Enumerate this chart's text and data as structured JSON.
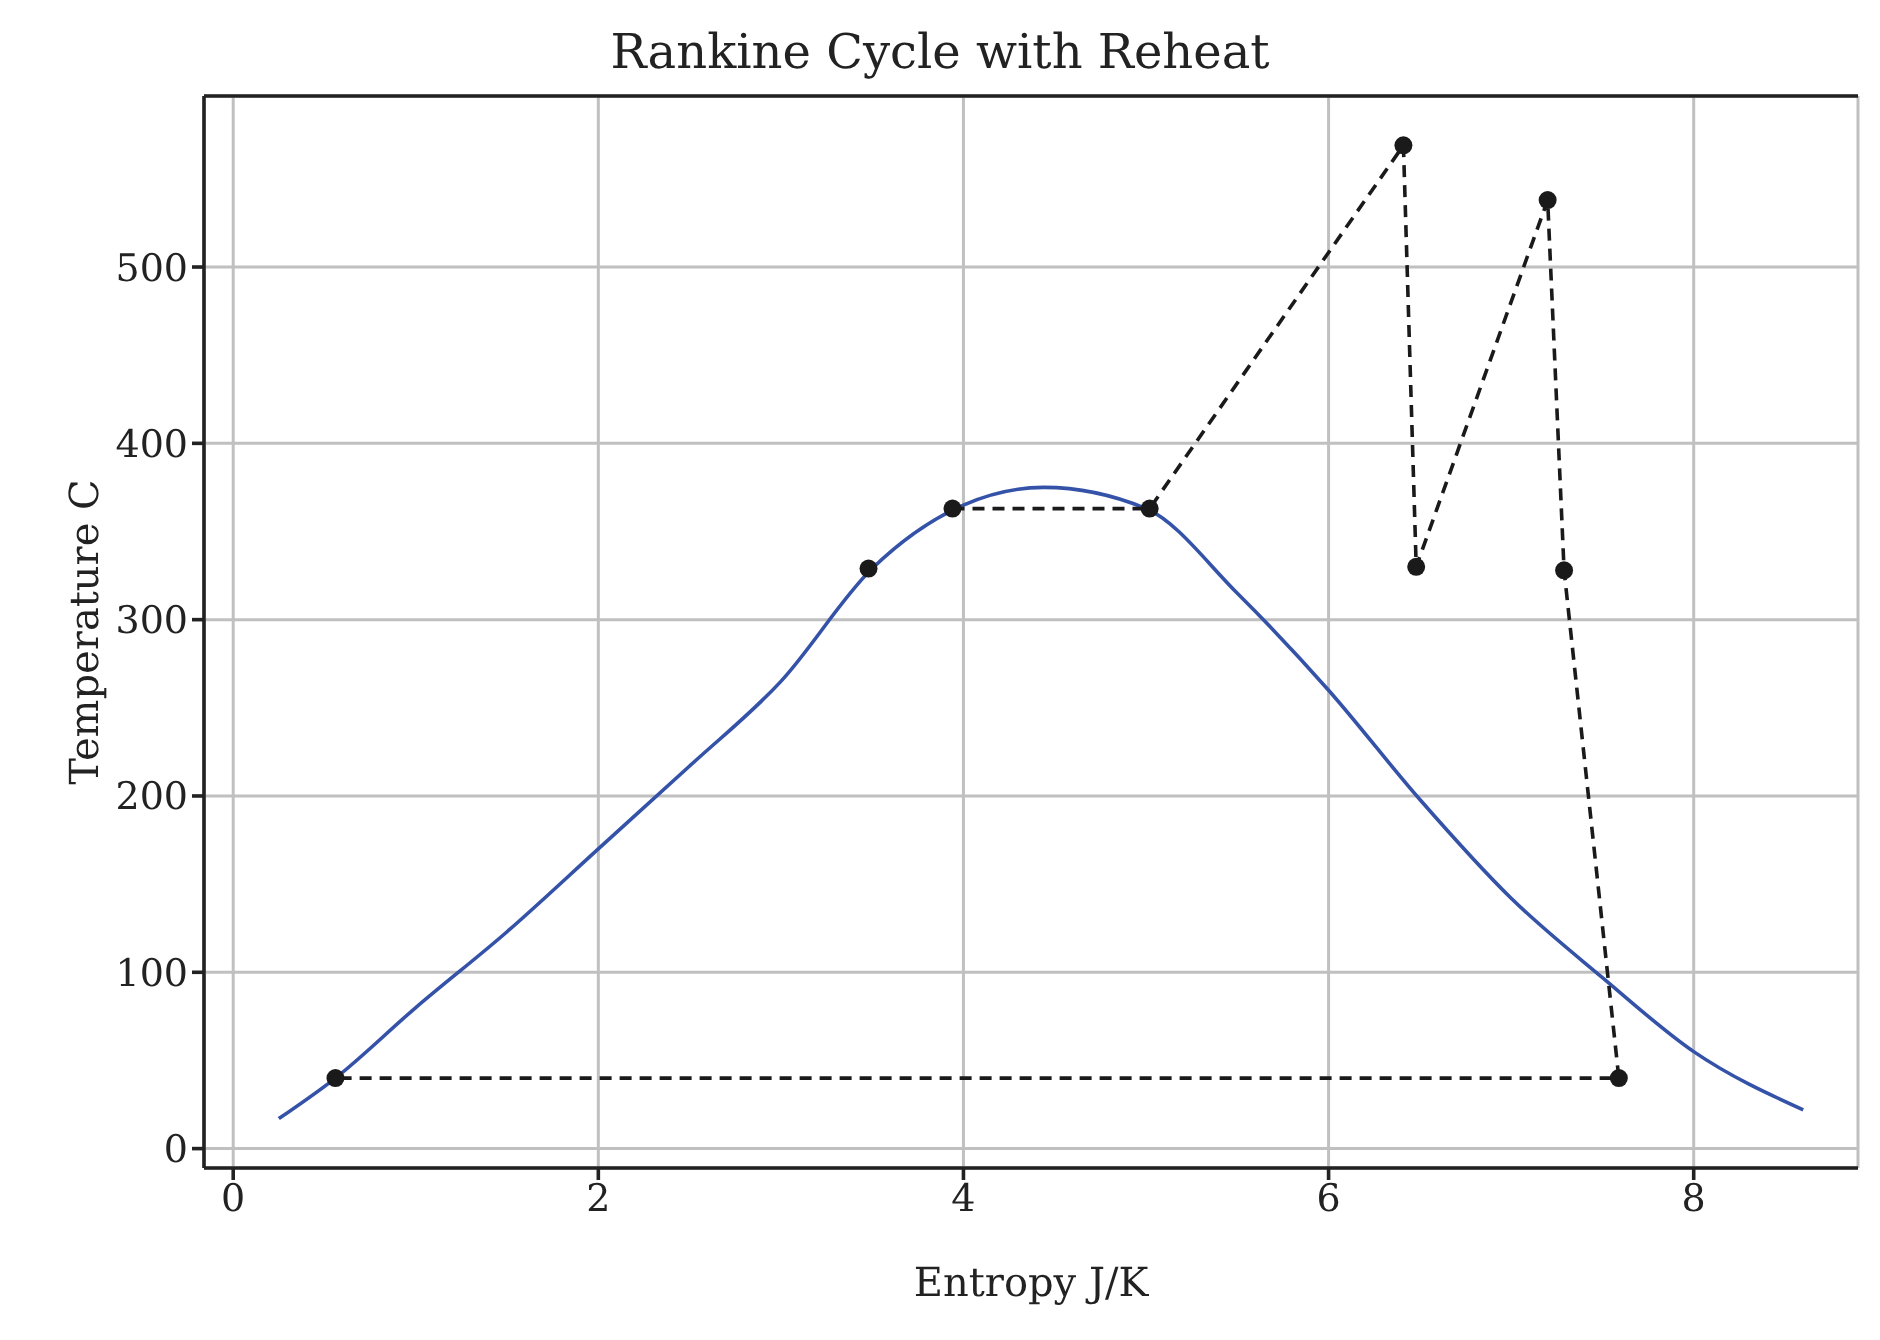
{
  "chart_data": {
    "type": "line",
    "title": "Rankine Cycle with Reheat",
    "xlabel": "Entropy J/K",
    "ylabel": "Temperature C",
    "xlim": [
      -0.16,
      8.9
    ],
    "ylim": [
      -11,
      597
    ],
    "xticks": [
      0,
      2,
      4,
      6,
      8
    ],
    "yticks": [
      0,
      100,
      200,
      300,
      400,
      500
    ],
    "grid": true,
    "series": [
      {
        "color": "#3452a8",
        "marker": "none",
        "line_style": "solid",
        "x": [
          0.25,
          0.56,
          1,
          1.5,
          2,
          2.5,
          3,
          3.5,
          4,
          4.44,
          5,
          5.5,
          6,
          6.5,
          7,
          7.5,
          8,
          8.6
        ],
        "values": [
          17,
          40,
          80,
          123,
          170,
          217,
          265,
          329,
          365,
          375,
          363,
          315,
          260,
          198,
          142,
          97,
          55,
          22
        ]
      },
      {
        "color": "#1a1a1a",
        "marker": "circle",
        "line_style": "dashed",
        "x": [
          3.94,
          5.02,
          6.41,
          6.48,
          7.2,
          7.29,
          7.59,
          0.56
        ],
        "values": [
          363,
          363,
          569,
          330,
          538,
          328,
          40,
          40
        ]
      },
      {
        "type": "scatter",
        "color": "#1a1a1a",
        "marker": "circle",
        "x": [
          3.48
        ],
        "values": [
          329
        ]
      }
    ]
  }
}
